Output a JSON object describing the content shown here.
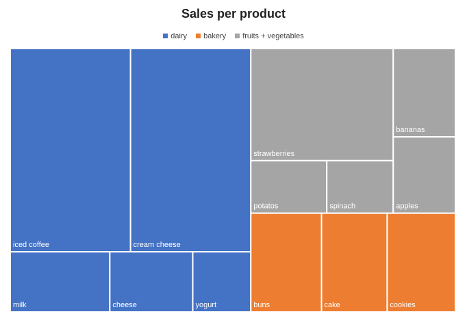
{
  "chart_data": {
    "type": "treemap",
    "title": "Sales per product",
    "legend_position": "top",
    "series": [
      {
        "name": "dairy",
        "color": "#4472C4",
        "items": [
          {
            "label": "iced coffee",
            "value": 49
          },
          {
            "label": "cream cheese",
            "value": 49
          },
          {
            "label": "milk",
            "value": 12
          },
          {
            "label": "cheese",
            "value": 10
          },
          {
            "label": "yogurt",
            "value": 7
          }
        ]
      },
      {
        "name": "bakery",
        "color": "#ED7D31",
        "items": [
          {
            "label": "buns",
            "value": 14
          },
          {
            "label": "cake",
            "value": 13
          },
          {
            "label": "cookies",
            "value": 13.5
          }
        ]
      },
      {
        "name": "fruits + vegetables",
        "color": "#A5A5A5",
        "items": [
          {
            "label": "strawberries",
            "value": 32
          },
          {
            "label": "potatos",
            "value": 8
          },
          {
            "label": "spinach",
            "value": 7
          },
          {
            "label": "bananas",
            "value": 11
          },
          {
            "label": "apples",
            "value": 9.5
          }
        ]
      }
    ]
  }
}
